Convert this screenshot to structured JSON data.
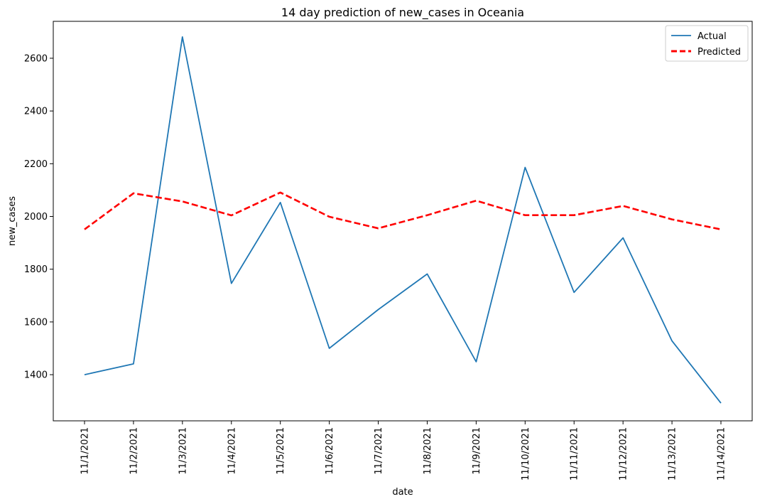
{
  "chart_data": {
    "type": "line",
    "title": "14 day prediction of new_cases in Oceania",
    "xlabel": "date",
    "ylabel": "new_cases",
    "categories": [
      "11/1/2021",
      "11/2/2021",
      "11/3/2021",
      "11/4/2021",
      "11/5/2021",
      "11/6/2021",
      "11/7/2021",
      "11/8/2021",
      "11/9/2021",
      "11/10/2021",
      "11/11/2021",
      "11/12/2021",
      "11/13/2021",
      "11/14/2021"
    ],
    "ylim": [
      1225,
      2740
    ],
    "yticks": [
      1400,
      1600,
      1800,
      2000,
      2200,
      2400,
      2600
    ],
    "grid": false,
    "legend_position": "top-right",
    "series": [
      {
        "name": "Actual",
        "color": "#1f77b4",
        "style": "solid",
        "values": [
          1400,
          1441,
          2681,
          1746,
          2053,
          1500,
          1647,
          1782,
          1449,
          2186,
          1712,
          1919,
          1528,
          1292
        ]
      },
      {
        "name": "Predicted",
        "color": "#ff0000",
        "style": "dashed",
        "values": [
          1951,
          2088,
          2057,
          2004,
          2091,
          1999,
          1955,
          2005,
          2060,
          2005,
          2005,
          2040,
          1989,
          1951
        ]
      }
    ]
  }
}
